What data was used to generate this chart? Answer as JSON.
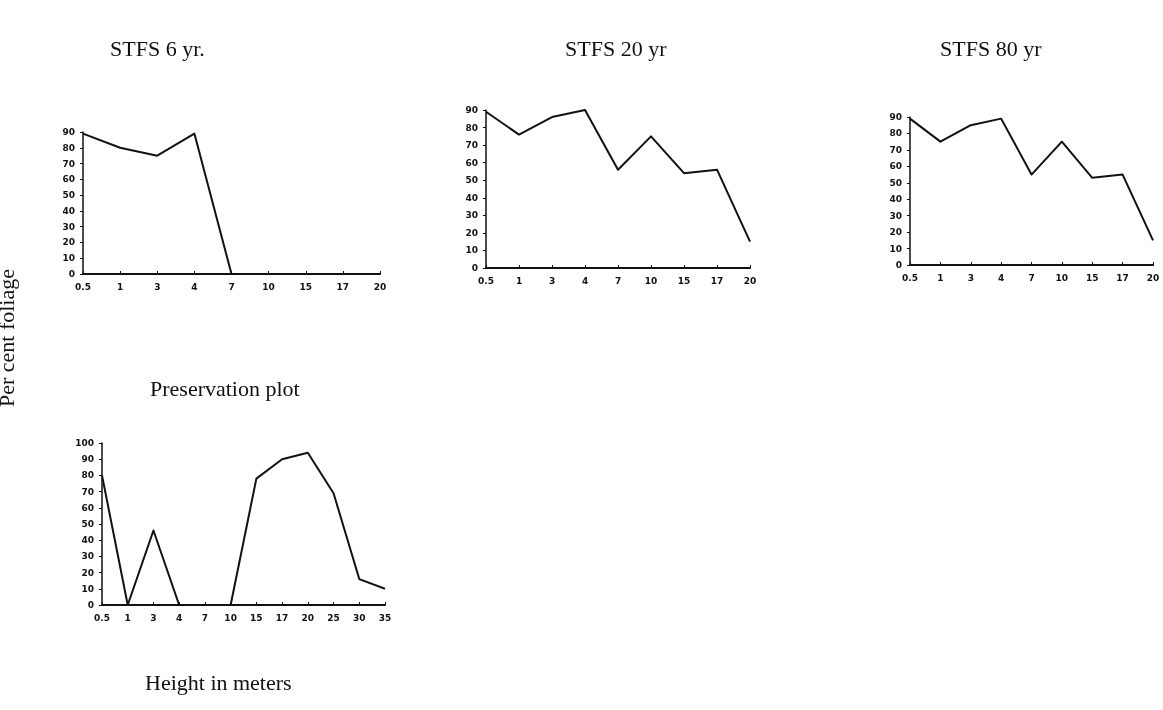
{
  "chart_data": [
    {
      "type": "line",
      "title": "STFS 6 yr.",
      "ylabel": "Per cent foliage",
      "categories": [
        "0.5",
        "1",
        "3",
        "4",
        "7",
        "10",
        "15",
        "17",
        "20"
      ],
      "values": [
        89,
        80,
        75,
        89,
        0,
        0,
        0,
        0,
        0
      ],
      "color": "#111111",
      "ylim": [
        0,
        90
      ],
      "yticks": [
        0,
        10,
        20,
        30,
        40,
        50,
        60,
        70,
        80,
        90
      ],
      "grid": false,
      "marker": "none",
      "line_style": "solid"
    },
    {
      "type": "line",
      "title": "STFS 20 yr",
      "categories": [
        "0.5",
        "1",
        "3",
        "4",
        "7",
        "10",
        "15",
        "17",
        "20"
      ],
      "values": [
        89,
        76,
        86,
        90,
        56,
        75,
        54,
        56,
        15
      ],
      "color": "#111111",
      "ylim": [
        0,
        90
      ],
      "yticks": [
        0,
        10,
        20,
        30,
        40,
        50,
        60,
        70,
        80,
        90
      ],
      "grid": false,
      "marker": "none",
      "line_style": "solid"
    },
    {
      "type": "line",
      "title": "STFS 80 yr",
      "categories": [
        "0.5",
        "1",
        "3",
        "4",
        "7",
        "10",
        "15",
        "17",
        "20"
      ],
      "values": [
        89,
        75,
        85,
        89,
        55,
        75,
        53,
        55,
        15
      ],
      "color": "#111111",
      "ylim": [
        0,
        90
      ],
      "yticks": [
        0,
        10,
        20,
        30,
        40,
        50,
        60,
        70,
        80,
        90
      ],
      "grid": false,
      "marker": "none",
      "line_style": "solid"
    },
    {
      "type": "line",
      "title": "Preservation plot",
      "xlabel": "Height in meters",
      "categories": [
        "0.5",
        "1",
        "3",
        "4",
        "7",
        "10",
        "15",
        "17",
        "20",
        "25",
        "30",
        "35"
      ],
      "values": [
        80,
        0,
        46,
        0,
        0,
        0,
        78,
        90,
        94,
        69,
        16,
        10
      ],
      "color": "#111111",
      "ylim": [
        0,
        100
      ],
      "yticks": [
        0,
        10,
        20,
        30,
        40,
        50,
        60,
        70,
        80,
        90,
        100
      ],
      "grid": false,
      "marker": "none",
      "line_style": "solid"
    }
  ]
}
